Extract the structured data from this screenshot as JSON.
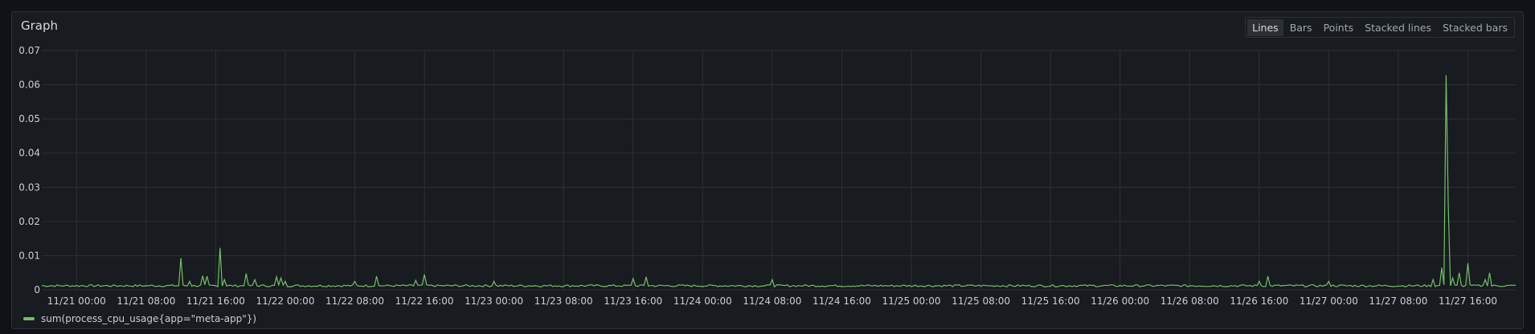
{
  "panel": {
    "title": "Graph",
    "modes": [
      "Lines",
      "Bars",
      "Points",
      "Stacked lines",
      "Stacked bars"
    ],
    "active_mode": "Lines"
  },
  "colors": {
    "series": "#73bf69",
    "grid": "#2c3036",
    "background": "#181b1f"
  },
  "chart_data": {
    "type": "line",
    "title": "Graph",
    "xlabel": "",
    "ylabel": "",
    "ylim": [
      0,
      0.07
    ],
    "yticks": [
      "0",
      "0.01",
      "0.02",
      "0.03",
      "0.04",
      "0.05",
      "0.06",
      "0.07"
    ],
    "xticks": [
      "11/21 00:00",
      "11/21 08:00",
      "11/21 16:00",
      "11/22 00:00",
      "11/22 08:00",
      "11/22 16:00",
      "11/23 00:00",
      "11/23 08:00",
      "11/23 16:00",
      "11/24 00:00",
      "11/24 08:00",
      "11/24 16:00",
      "11/25 00:00",
      "11/25 08:00",
      "11/25 16:00",
      "11/26 00:00",
      "11/26 08:00",
      "11/26 16:00",
      "11/27 00:00",
      "11/27 08:00",
      "11/27 16:00"
    ],
    "xlim": [
      "11/20 20:00",
      "11/27 21:30"
    ],
    "grid": true,
    "legend": "bottom-left",
    "series": [
      {
        "name": "sum(process_cpu_usage{app=\"meta-app\"})",
        "baseline": 0.0012,
        "points": [
          [
            "11/21 12:00",
            0.0093
          ],
          [
            "11/21 13:00",
            0.0025
          ],
          [
            "11/21 14:30",
            0.0041
          ],
          [
            "11/21 15:00",
            0.004
          ],
          [
            "11/21 16:30",
            0.0123
          ],
          [
            "11/21 17:00",
            0.003
          ],
          [
            "11/21 19:30",
            0.0048
          ],
          [
            "11/21 20:30",
            0.003
          ],
          [
            "11/21 23:00",
            0.0038
          ],
          [
            "11/21 23:30",
            0.0035
          ],
          [
            "11/22 00:00",
            0.0025
          ],
          [
            "11/22 08:00",
            0.0025
          ],
          [
            "11/22 10:30",
            0.004
          ],
          [
            "11/22 15:00",
            0.0028
          ],
          [
            "11/22 16:00",
            0.0045
          ],
          [
            "11/23 00:00",
            0.0025
          ],
          [
            "11/23 16:00",
            0.0033
          ],
          [
            "11/23 17:30",
            0.0038
          ],
          [
            "11/24 08:00",
            0.003
          ],
          [
            "11/26 16:00",
            0.0025
          ],
          [
            "11/26 17:00",
            0.004
          ],
          [
            "11/27 00:00",
            0.0025
          ],
          [
            "11/27 12:00",
            0.003
          ],
          [
            "11/27 13:00",
            0.0065
          ],
          [
            "11/27 13:30",
            0.0628
          ],
          [
            "11/27 13:45",
            0.0245
          ],
          [
            "11/27 14:15",
            0.0035
          ],
          [
            "11/27 15:00",
            0.005
          ],
          [
            "11/27 16:00",
            0.0078
          ],
          [
            "11/27 18:00",
            0.003
          ],
          [
            "11/27 18:30",
            0.005
          ]
        ]
      }
    ]
  }
}
